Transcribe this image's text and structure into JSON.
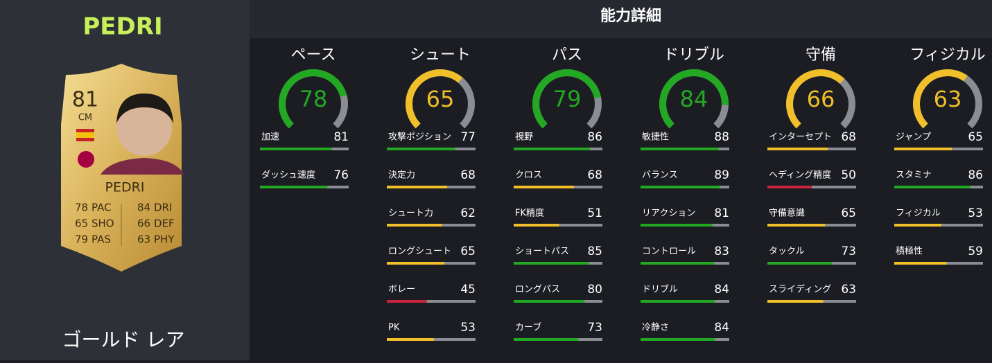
{
  "player": {
    "name": "PEDRI",
    "card_rating": 81,
    "card_position": "CM",
    "card_name": "PEDRI",
    "card_stats": [
      {
        "value": 78,
        "label": "PAC"
      },
      {
        "value": 65,
        "label": "SHO"
      },
      {
        "value": 79,
        "label": "PAS"
      },
      {
        "value": 84,
        "label": "DRI"
      },
      {
        "value": 66,
        "label": "DEF"
      },
      {
        "value": 63,
        "label": "PHY"
      }
    ],
    "card_type": "ゴールド レア"
  },
  "panel": {
    "title": "能力詳細",
    "categories": [
      {
        "name": "ペース",
        "value": 78,
        "color": "#22a822",
        "stats": [
          {
            "name": "加速",
            "value": 81,
            "color": "#22a822"
          },
          {
            "name": "ダッシュ速度",
            "value": 76,
            "color": "#22a822"
          }
        ]
      },
      {
        "name": "シュート",
        "value": 65,
        "color": "#f0bf2a",
        "stats": [
          {
            "name": "攻撃ポジション",
            "value": 77,
            "color": "#22a822"
          },
          {
            "name": "決定力",
            "value": 68,
            "color": "#f0bf2a"
          },
          {
            "name": "シュート力",
            "value": 62,
            "color": "#f0bf2a"
          },
          {
            "name": "ロングシュート",
            "value": 65,
            "color": "#f0bf2a"
          },
          {
            "name": "ボレー",
            "value": 45,
            "color": "#c8233f"
          },
          {
            "name": "PK",
            "value": 53,
            "color": "#f0bf2a"
          }
        ]
      },
      {
        "name": "パス",
        "value": 79,
        "color": "#22a822",
        "stats": [
          {
            "name": "視野",
            "value": 86,
            "color": "#22a822"
          },
          {
            "name": "クロス",
            "value": 68,
            "color": "#f0bf2a"
          },
          {
            "name": "FK精度",
            "value": 51,
            "color": "#f0bf2a"
          },
          {
            "name": "ショートパス",
            "value": 85,
            "color": "#22a822"
          },
          {
            "name": "ロングパス",
            "value": 80,
            "color": "#22a822"
          },
          {
            "name": "カーブ",
            "value": 73,
            "color": "#22a822"
          }
        ]
      },
      {
        "name": "ドリブル",
        "value": 84,
        "color": "#22a822",
        "stats": [
          {
            "name": "敏捷性",
            "value": 88,
            "color": "#22a822"
          },
          {
            "name": "バランス",
            "value": 89,
            "color": "#22a822"
          },
          {
            "name": "リアクション",
            "value": 81,
            "color": "#22a822"
          },
          {
            "name": "コントロール",
            "value": 83,
            "color": "#22a822"
          },
          {
            "name": "ドリブル",
            "value": 84,
            "color": "#22a822"
          },
          {
            "name": "冷静さ",
            "value": 84,
            "color": "#22a822"
          }
        ]
      },
      {
        "name": "守備",
        "value": 66,
        "color": "#f0bf2a",
        "stats": [
          {
            "name": "インターセプト",
            "value": 68,
            "color": "#f0bf2a"
          },
          {
            "name": "ヘディング精度",
            "value": 50,
            "color": "#c8233f"
          },
          {
            "name": "守備意識",
            "value": 65,
            "color": "#f0bf2a"
          },
          {
            "name": "タックル",
            "value": 73,
            "color": "#22a822"
          },
          {
            "name": "スライディング",
            "value": 63,
            "color": "#f0bf2a"
          }
        ]
      },
      {
        "name": "フィジカル",
        "value": 63,
        "color": "#f0bf2a",
        "stats": [
          {
            "name": "ジャンプ",
            "value": 65,
            "color": "#f0bf2a"
          },
          {
            "name": "スタミナ",
            "value": 86,
            "color": "#22a822"
          },
          {
            "name": "フィジカル",
            "value": 53,
            "color": "#f0bf2a"
          },
          {
            "name": "積極性",
            "value": 59,
            "color": "#f0bf2a"
          }
        ]
      }
    ]
  }
}
